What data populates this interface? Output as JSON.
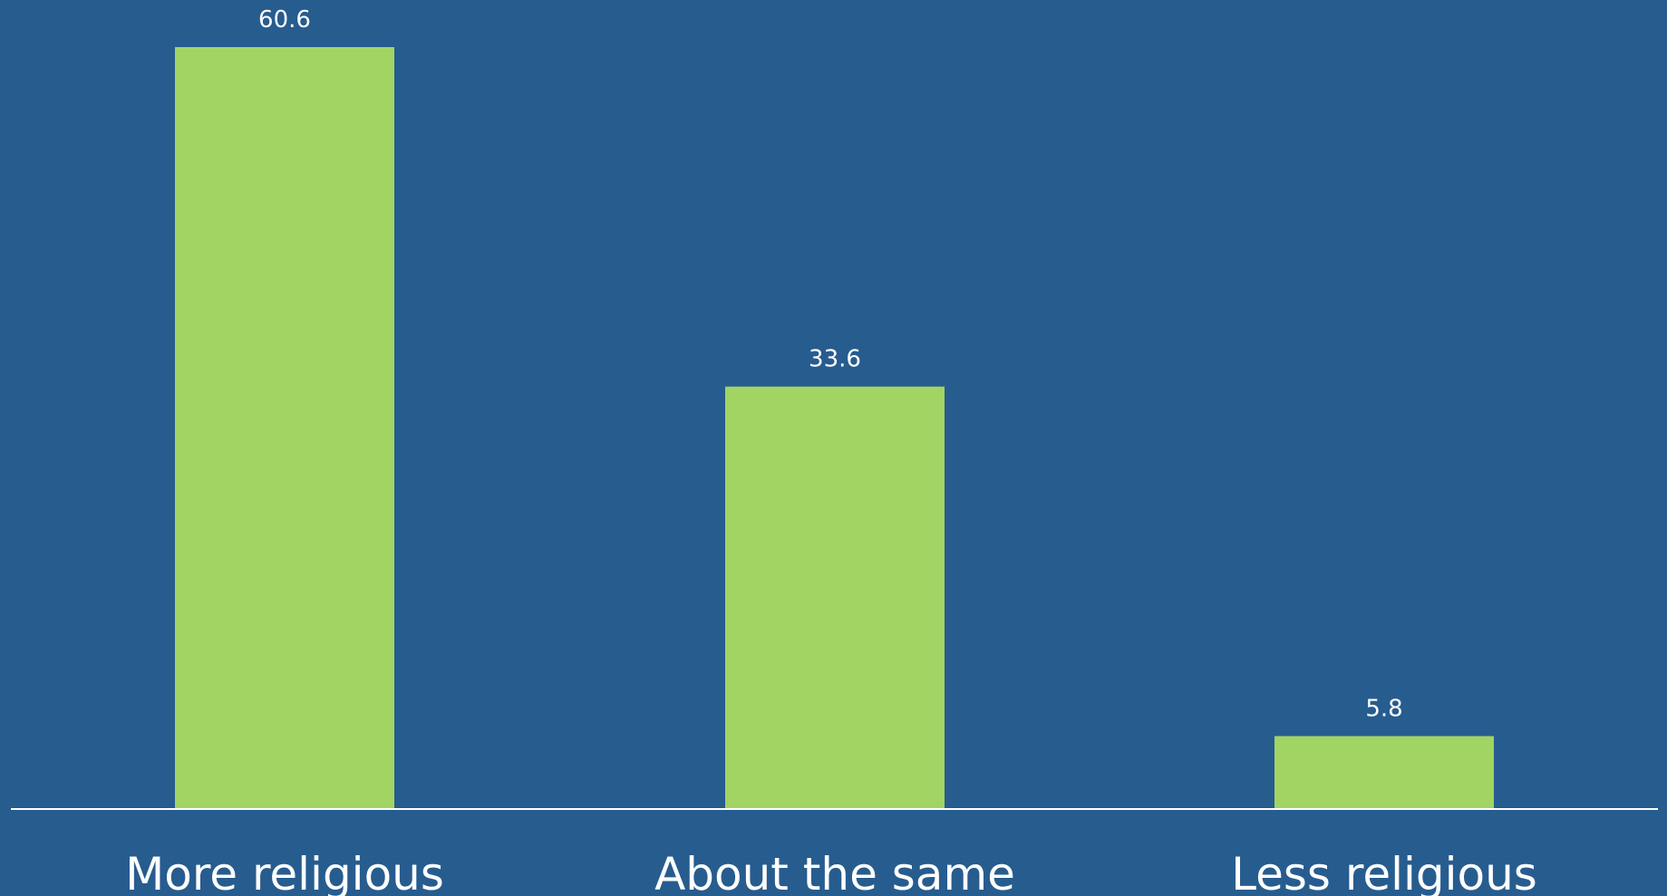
{
  "colors": {
    "background": "#275c8f",
    "bar": "#a2d463",
    "text": "#ffffff",
    "axis": "#ffffff"
  },
  "chart_data": {
    "type": "bar",
    "title": "",
    "xlabel": "",
    "ylabel": "",
    "categories": [
      "More religious",
      "About the same",
      "Less religious"
    ],
    "values": [
      60.6,
      33.6,
      5.8
    ],
    "data_labels": [
      "60.6",
      "33.6",
      "5.8"
    ],
    "ylim": [
      0,
      60.6
    ],
    "grid": false,
    "legend": "none"
  }
}
